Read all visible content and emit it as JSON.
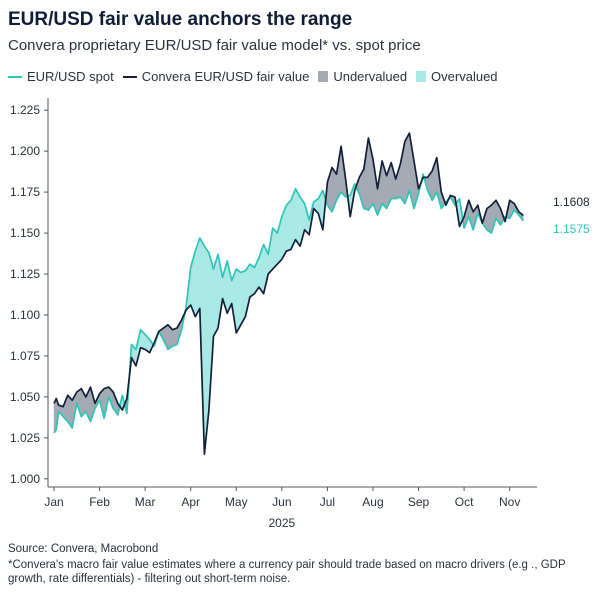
{
  "title": "EUR/USD fair value anchors the range",
  "subtitle": "Convera proprietary EUR/USD fair value model* vs. spot price",
  "legend": [
    {
      "label": "EUR/USD spot",
      "kind": "line",
      "color": "#2ec4b6"
    },
    {
      "label": "Convera EUR/USD fair value",
      "kind": "line",
      "color": "#13203a"
    },
    {
      "label": "Undervalued",
      "kind": "box",
      "color": "#a3aab3"
    },
    {
      "label": "Overvalued",
      "kind": "box",
      "color": "#a9e9e5"
    }
  ],
  "footer": {
    "source": "Source: Convera, Macrobond",
    "note": "*Convera's macro fair value estimates where a currency pair should trade based on macro drivers (e.g ., GDP growth, rate differentials) - filtering out short-term noise."
  },
  "chart_data": {
    "type": "line",
    "xlabel": "2025",
    "ylabel": "",
    "ylim": [
      0.995,
      1.23
    ],
    "xlim": [
      0,
      10.6
    ],
    "yticks": [
      "1.000",
      "1.025",
      "1.050",
      "1.075",
      "1.100",
      "1.125",
      "1.150",
      "1.175",
      "1.200",
      "1.225"
    ],
    "ytick_values": [
      1.0,
      1.025,
      1.05,
      1.075,
      1.1,
      1.125,
      1.15,
      1.175,
      1.2,
      1.225
    ],
    "xticks": [
      "Jan",
      "Feb",
      "Mar",
      "Apr",
      "May",
      "Jun",
      "Jul",
      "Aug",
      "Sep",
      "Oct",
      "Nov"
    ],
    "xtick_values": [
      0,
      1,
      2,
      3,
      4,
      5,
      6,
      7,
      8,
      9,
      10
    ],
    "colors": {
      "spot": "#2ec4b6",
      "fair": "#13203a",
      "undervalued": "#a3aab3",
      "overvalued": "#a9e9e5",
      "spot_label": "#2ec4b6",
      "fair_label": "#1d2733"
    },
    "end_labels": {
      "fair": "1.1608",
      "spot": "1.1575"
    },
    "series": [
      {
        "name": "EUR/USD spot",
        "x": [
          0.0,
          0.05,
          0.1,
          0.2,
          0.3,
          0.4,
          0.5,
          0.6,
          0.7,
          0.8,
          0.9,
          1.0,
          1.1,
          1.2,
          1.3,
          1.4,
          1.5,
          1.6,
          1.7,
          1.8,
          1.9,
          2.0,
          2.1,
          2.2,
          2.3,
          2.4,
          2.5,
          2.6,
          2.7,
          2.8,
          2.9,
          3.0,
          3.1,
          3.2,
          3.3,
          3.4,
          3.5,
          3.6,
          3.7,
          3.8,
          3.9,
          4.0,
          4.1,
          4.2,
          4.3,
          4.4,
          4.5,
          4.6,
          4.7,
          4.8,
          4.9,
          5.0,
          5.1,
          5.2,
          5.3,
          5.4,
          5.5,
          5.6,
          5.7,
          5.8,
          5.9,
          6.0,
          6.1,
          6.2,
          6.3,
          6.4,
          6.5,
          6.6,
          6.7,
          6.8,
          6.9,
          7.0,
          7.1,
          7.2,
          7.3,
          7.4,
          7.5,
          7.6,
          7.7,
          7.8,
          7.9,
          8.0,
          8.1,
          8.2,
          8.3,
          8.4,
          8.5,
          8.6,
          8.7,
          8.8,
          8.9,
          9.0,
          9.1,
          9.2,
          9.3,
          9.4,
          9.5,
          9.6,
          9.7,
          9.8,
          9.9,
          10.0,
          10.1,
          10.2,
          10.3
        ],
        "values": [
          1.028,
          1.03,
          1.041,
          1.038,
          1.035,
          1.031,
          1.046,
          1.038,
          1.041,
          1.035,
          1.043,
          1.048,
          1.037,
          1.05,
          1.043,
          1.039,
          1.051,
          1.04,
          1.082,
          1.079,
          1.091,
          1.088,
          1.085,
          1.081,
          1.09,
          1.085,
          1.079,
          1.081,
          1.082,
          1.091,
          1.105,
          1.129,
          1.139,
          1.147,
          1.142,
          1.138,
          1.128,
          1.137,
          1.123,
          1.133,
          1.121,
          1.128,
          1.126,
          1.127,
          1.131,
          1.129,
          1.135,
          1.143,
          1.137,
          1.153,
          1.15,
          1.16,
          1.167,
          1.17,
          1.177,
          1.172,
          1.168,
          1.158,
          1.169,
          1.171,
          1.176,
          1.167,
          1.163,
          1.17,
          1.175,
          1.172,
          1.173,
          1.18,
          1.174,
          1.165,
          1.164,
          1.168,
          1.161,
          1.168,
          1.165,
          1.171,
          1.171,
          1.172,
          1.168,
          1.176,
          1.165,
          1.174,
          1.186,
          1.176,
          1.17,
          1.175,
          1.165,
          1.169,
          1.172,
          1.167,
          1.171,
          1.153,
          1.16,
          1.152,
          1.162,
          1.156,
          1.152,
          1.15,
          1.159,
          1.155,
          1.16,
          1.159,
          1.164,
          1.161,
          1.1575
        ]
      },
      {
        "name": "Convera EUR/USD fair value",
        "x": [
          0.0,
          0.05,
          0.1,
          0.2,
          0.3,
          0.4,
          0.5,
          0.6,
          0.7,
          0.8,
          0.9,
          1.0,
          1.1,
          1.2,
          1.3,
          1.4,
          1.5,
          1.6,
          1.7,
          1.8,
          1.9,
          2.0,
          2.1,
          2.2,
          2.3,
          2.4,
          2.5,
          2.6,
          2.7,
          2.8,
          2.9,
          3.0,
          3.1,
          3.2,
          3.3,
          3.4,
          3.5,
          3.6,
          3.7,
          3.8,
          3.9,
          4.0,
          4.1,
          4.2,
          4.3,
          4.4,
          4.5,
          4.6,
          4.7,
          4.8,
          4.9,
          5.0,
          5.1,
          5.2,
          5.3,
          5.4,
          5.5,
          5.6,
          5.7,
          5.8,
          5.9,
          6.0,
          6.1,
          6.2,
          6.3,
          6.4,
          6.5,
          6.6,
          6.7,
          6.8,
          6.9,
          7.0,
          7.1,
          7.2,
          7.3,
          7.4,
          7.5,
          7.6,
          7.7,
          7.8,
          7.9,
          8.0,
          8.1,
          8.2,
          8.3,
          8.4,
          8.5,
          8.6,
          8.7,
          8.8,
          8.9,
          9.0,
          9.1,
          9.2,
          9.3,
          9.4,
          9.5,
          9.6,
          9.7,
          9.8,
          9.9,
          10.0,
          10.1,
          10.2,
          10.3
        ],
        "values": [
          1.046,
          1.049,
          1.045,
          1.044,
          1.051,
          1.048,
          1.053,
          1.055,
          1.05,
          1.056,
          1.046,
          1.052,
          1.055,
          1.056,
          1.053,
          1.046,
          1.042,
          1.049,
          1.074,
          1.069,
          1.08,
          1.079,
          1.077,
          1.083,
          1.09,
          1.092,
          1.094,
          1.091,
          1.092,
          1.097,
          1.103,
          1.106,
          1.099,
          1.104,
          1.015,
          1.042,
          1.087,
          1.092,
          1.11,
          1.101,
          1.107,
          1.089,
          1.094,
          1.099,
          1.111,
          1.113,
          1.117,
          1.113,
          1.125,
          1.128,
          1.131,
          1.134,
          1.139,
          1.14,
          1.146,
          1.142,
          1.152,
          1.149,
          1.165,
          1.162,
          1.152,
          1.181,
          1.19,
          1.186,
          1.203,
          1.183,
          1.16,
          1.176,
          1.184,
          1.189,
          1.208,
          1.195,
          1.177,
          1.194,
          1.185,
          1.193,
          1.183,
          1.192,
          1.206,
          1.211,
          1.194,
          1.177,
          1.184,
          1.184,
          1.188,
          1.196,
          1.175,
          1.167,
          1.173,
          1.172,
          1.154,
          1.16,
          1.17,
          1.163,
          1.167,
          1.156,
          1.165,
          1.167,
          1.17,
          1.165,
          1.157,
          1.17,
          1.168,
          1.163,
          1.1608
        ]
      }
    ]
  }
}
